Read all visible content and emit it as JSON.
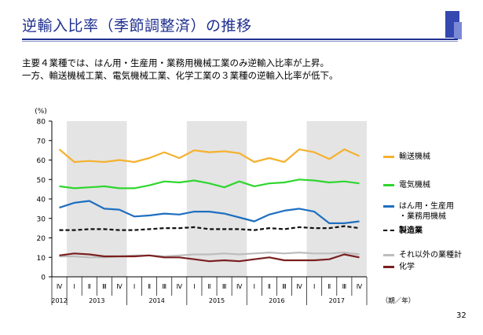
{
  "slide": {
    "title": "逆輸入比率（季節調整済）の推移",
    "summary_lines": [
      "主要４業種では、はん用・生産用・業務用機械工業のみ逆輸入比率が上昇。",
      "一方、輸送機械工業、電気機械工業、化学工業の３業種の逆輸入比率が低下。"
    ],
    "page_number": "32",
    "colors": {
      "title": "#1f2f8f",
      "accent_block": "#3448b0"
    }
  },
  "chart_data": {
    "type": "line",
    "title": "",
    "ylabel": "(%)",
    "xlabel": "（期／年）",
    "ylim": [
      0,
      80
    ],
    "yticks": [
      0,
      10,
      20,
      30,
      40,
      50,
      60,
      70,
      80
    ],
    "quarter_labels": [
      "Ⅳ",
      "Ⅰ",
      "Ⅱ",
      "Ⅲ",
      "Ⅳ",
      "Ⅰ",
      "Ⅱ",
      "Ⅲ",
      "Ⅳ",
      "Ⅰ",
      "Ⅱ",
      "Ⅲ",
      "Ⅳ",
      "Ⅰ",
      "Ⅱ",
      "Ⅲ",
      "Ⅳ",
      "Ⅰ",
      "Ⅱ",
      "Ⅲ",
      "Ⅳ"
    ],
    "year_labels": [
      {
        "label": "2012",
        "start": 0,
        "end": 0
      },
      {
        "label": "2013",
        "start": 1,
        "end": 4
      },
      {
        "label": "2014",
        "start": 5,
        "end": 8
      },
      {
        "label": "2015",
        "start": 9,
        "end": 12
      },
      {
        "label": "2016",
        "start": 13,
        "end": 16
      },
      {
        "label": "2017",
        "start": 17,
        "end": 20
      }
    ],
    "shaded_years": [
      "2013",
      "2015",
      "2017"
    ],
    "grid": false,
    "legend_position": "right",
    "series": [
      {
        "name": "輸送機械",
        "color": "#f5b12f",
        "dashed": false,
        "values": [
          65.5,
          59,
          59.5,
          59,
          60,
          59,
          61,
          64,
          61,
          65,
          64,
          64.5,
          63.5,
          59,
          61,
          59,
          65.5,
          64,
          60.5,
          65.5,
          62
        ]
      },
      {
        "name": "電気機械",
        "color": "#2fd62f",
        "dashed": false,
        "values": [
          46.5,
          45.5,
          46,
          46.5,
          45.5,
          45.5,
          47,
          49,
          48.5,
          49.5,
          48,
          46,
          49,
          46.5,
          48,
          48.5,
          50,
          49.5,
          48.5,
          49,
          48
        ]
      },
      {
        "name": "はん用・生産用・業務用機械",
        "label_lines": [
          "はん用・生産用",
          "・業務用機械"
        ],
        "color": "#1e6fc0",
        "dashed": false,
        "values": [
          35.5,
          38,
          39,
          35,
          34.5,
          31,
          31.5,
          32.5,
          32,
          33.5,
          33.5,
          32.5,
          30.5,
          28.5,
          32,
          34,
          35,
          33.5,
          27.5,
          27.5,
          28.5
        ]
      },
      {
        "name": "製造業",
        "color": "#111111",
        "dashed": true,
        "values": [
          24,
          24,
          24.5,
          24.5,
          24,
          24,
          24.5,
          25,
          25,
          25.5,
          24.5,
          24.5,
          24.5,
          24,
          25,
          24.5,
          25.5,
          25,
          25,
          26,
          25
        ]
      },
      {
        "name": "それ以外の業種計",
        "color": "#bdbdbd",
        "dashed": false,
        "values": [
          10.5,
          10.5,
          10,
          10,
          10.5,
          11,
          11,
          10.5,
          11,
          11.5,
          11.5,
          12,
          11.5,
          12,
          12.5,
          12,
          12.5,
          12,
          12,
          12.5,
          11.5
        ]
      },
      {
        "name": "化学",
        "color": "#7a1f1f",
        "dashed": false,
        "values": [
          11,
          12,
          11.5,
          10.5,
          10.5,
          10.5,
          11,
          10,
          10,
          9,
          8,
          8.5,
          8,
          9,
          10,
          8.5,
          8.5,
          8.5,
          9,
          11.5,
          10
        ]
      }
    ]
  }
}
